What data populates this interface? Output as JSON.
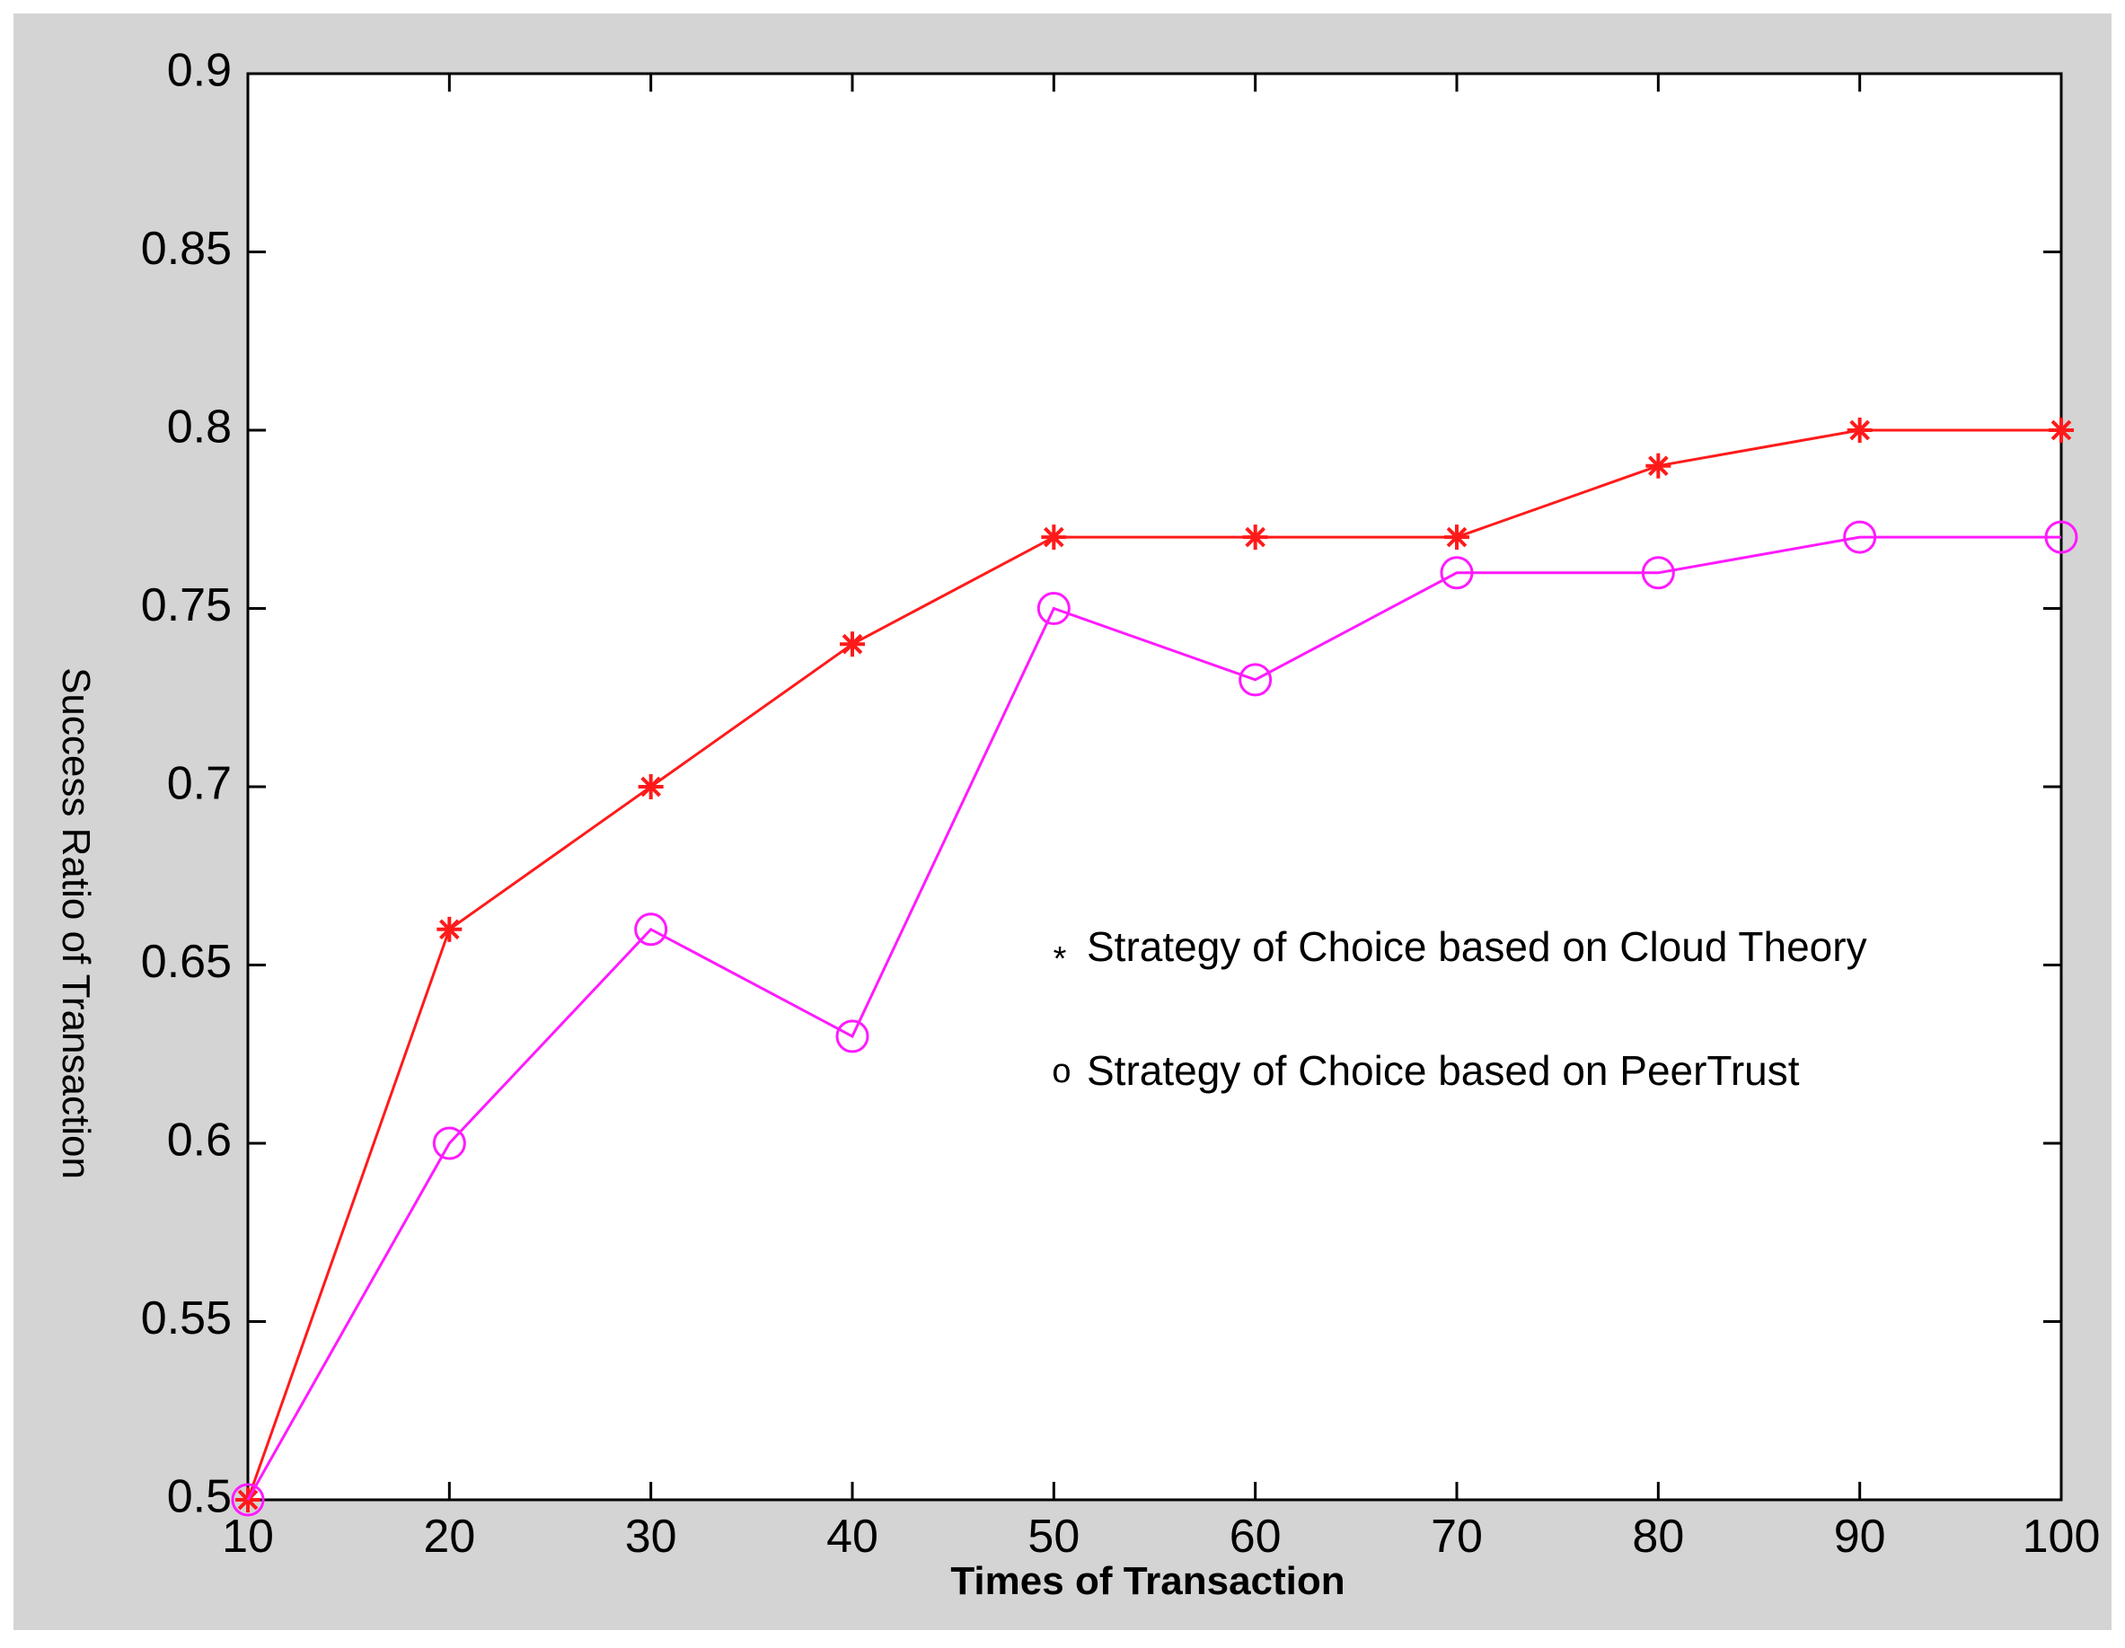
{
  "chart_data": {
    "type": "line",
    "title": "",
    "xlabel": "Times of Transaction",
    "ylabel": "Success Ratio of Transaction",
    "x": [
      10,
      20,
      30,
      40,
      50,
      60,
      70,
      80,
      90,
      100
    ],
    "xlim": [
      10,
      100
    ],
    "ylim": [
      0.5,
      0.9
    ],
    "x_ticks": [
      "10",
      "20",
      "30",
      "40",
      "50",
      "60",
      "70",
      "80",
      "90",
      "100"
    ],
    "y_ticks": [
      "0.5",
      "0.55",
      "0.6",
      "0.65",
      "0.7",
      "0.75",
      "0.8",
      "0.85",
      "0.9"
    ],
    "grid": false,
    "legend_position": "middle-right",
    "series": [
      {
        "name": "Strategy of Choice based on Cloud Theory",
        "legend_symbol": "*",
        "marker": "star",
        "color": "#ff1a1a",
        "values": [
          0.5,
          0.66,
          0.7,
          0.74,
          0.77,
          0.77,
          0.77,
          0.79,
          0.8,
          0.8
        ]
      },
      {
        "name": "Strategy of Choice based on PeerTrust",
        "legend_symbol": "o",
        "marker": "circle",
        "color": "#ff1aff",
        "values": [
          0.5,
          0.6,
          0.66,
          0.63,
          0.75,
          0.73,
          0.76,
          0.76,
          0.77,
          0.77
        ]
      }
    ]
  }
}
